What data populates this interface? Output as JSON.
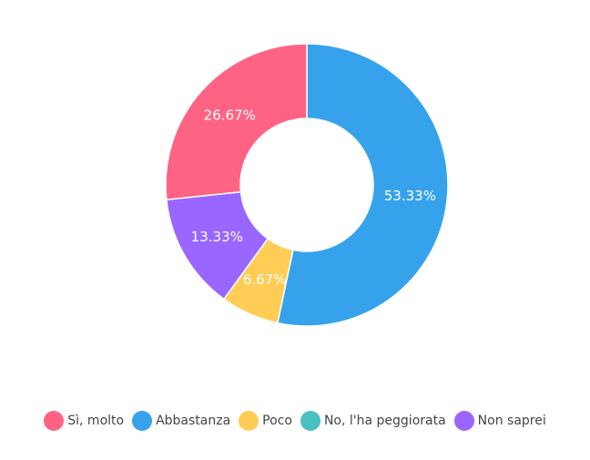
{
  "chart_data": {
    "type": "pie",
    "variant": "donut",
    "categories": [
      "Sì, molto",
      "Abbastanza",
      "Poco",
      "No, l'ha peggiorata",
      "Non saprei"
    ],
    "values": [
      26.67,
      53.33,
      6.67,
      0,
      13.33
    ],
    "value_labels": [
      "26.67%",
      "53.33%",
      "6.67%",
      "",
      "13.33%"
    ],
    "colors": [
      "#ff6384",
      "#36a2eb",
      "#ffcd56",
      "#4bc0c0",
      "#9966ff"
    ],
    "slice_order": [
      1,
      2,
      3,
      4,
      0
    ],
    "legend_position": "bottom"
  }
}
